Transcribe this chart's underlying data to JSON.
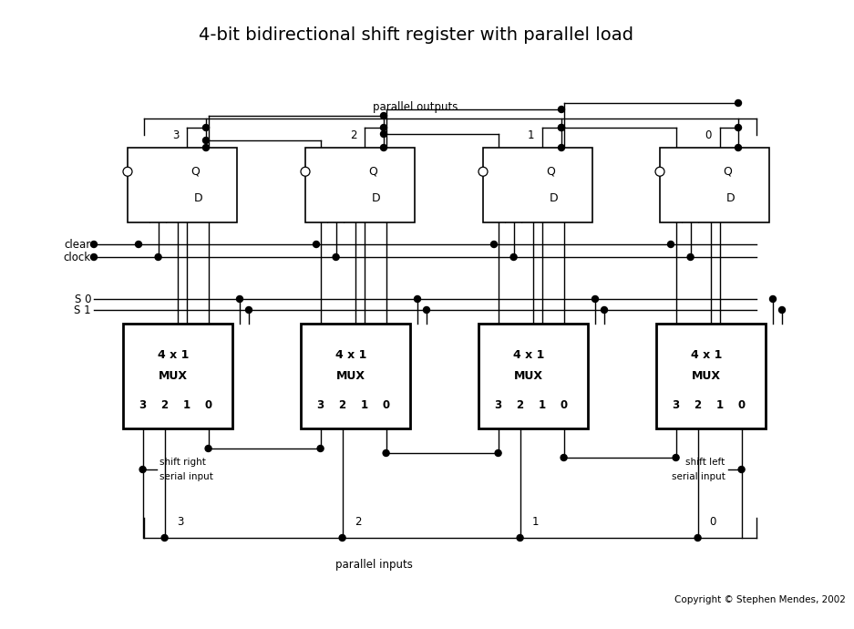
{
  "title": "4-bit bidirectional shift register with parallel load",
  "copyright": "Copyright © Stephen Mendes, 2002",
  "bg_color": "#ffffff"
}
